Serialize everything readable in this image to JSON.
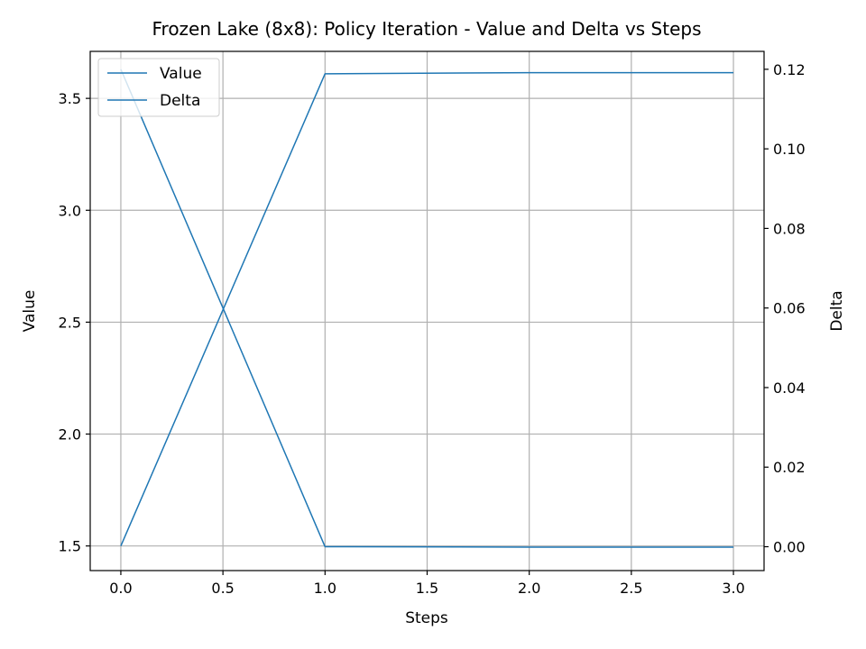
{
  "chart_data": {
    "type": "line",
    "title": "Frozen Lake (8x8): Policy Iteration - Value and Delta vs Steps",
    "xlabel": "Steps",
    "ylabel": "Value",
    "y2label": "Delta",
    "xlim": [
      -0.15,
      3.15
    ],
    "ylim": [
      1.39,
      3.71
    ],
    "y2lim": [
      -0.006,
      0.1245
    ],
    "xticks": [
      "0.0",
      "0.5",
      "1.0",
      "1.5",
      "2.0",
      "2.5",
      "3.0"
    ],
    "yticks": [
      "1.5",
      "2.0",
      "2.5",
      "3.0",
      "3.5"
    ],
    "y2ticks": [
      "0.00",
      "0.02",
      "0.04",
      "0.06",
      "0.08",
      "0.10",
      "0.12"
    ],
    "grid": true,
    "legend_position": "upper-left",
    "series": [
      {
        "name": "Value",
        "axis": "left",
        "color": "#1f77b4",
        "x": [
          0,
          1,
          2,
          3
        ],
        "y": [
          1.5,
          3.61,
          3.615,
          3.615
        ]
      },
      {
        "name": "Delta",
        "axis": "right",
        "color": "#1f77b4",
        "x": [
          0,
          1,
          2,
          3
        ],
        "y": [
          0.12,
          0.0,
          -0.0001,
          -0.0001
        ]
      }
    ]
  }
}
